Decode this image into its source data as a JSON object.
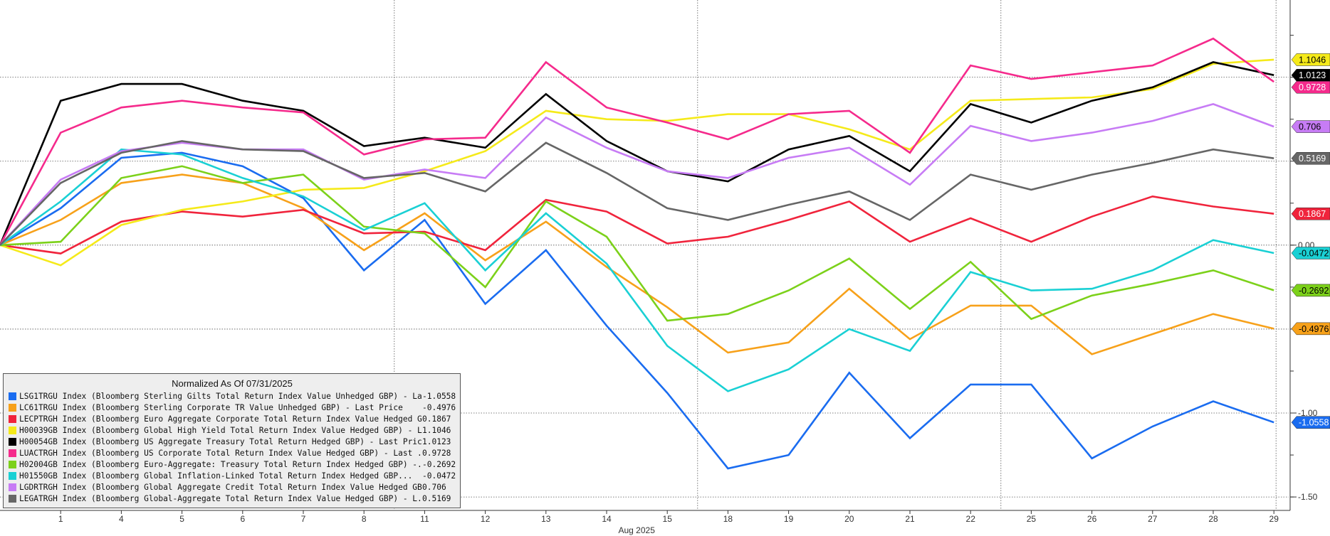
{
  "chart_data": {
    "type": "line",
    "x_axis_period": "Aug 2025",
    "x": [
      "31",
      "1",
      "4",
      "5",
      "6",
      "7",
      "8",
      "11",
      "12",
      "13",
      "14",
      "15",
      "18",
      "19",
      "20",
      "21",
      "22",
      "25",
      "26",
      "27",
      "28",
      "29"
    ],
    "x_tick_labels": [
      "1",
      "4",
      "5",
      "6",
      "7",
      "8",
      "11",
      "12",
      "13",
      "14",
      "15",
      "18",
      "19",
      "20",
      "21",
      "22",
      "25",
      "26",
      "27",
      "28",
      "29"
    ],
    "y_ticks": [
      "-1.50",
      "-1.00",
      "0.00"
    ],
    "ylim": [
      -1.58,
      1.46
    ],
    "y_gridlines": [
      -1.5,
      -1.0,
      -0.5,
      0.0,
      0.5,
      1.0
    ],
    "x_gridlines_after": [
      "8",
      "15",
      "22",
      "29"
    ],
    "grid": true,
    "legend_placement": "bottom-left",
    "legend_title": "Normalized As Of 07/31/2025",
    "series": [
      {
        "name": "LSG1TRGU Index (Bloomberg Sterling Gilts Total Return Index Value Unhedged GBP) - Las...",
        "last": "-1.0558",
        "color": "#1a6cf0",
        "values": [
          0,
          0.22,
          0.52,
          0.55,
          0.47,
          0.28,
          -0.15,
          0.15,
          -0.35,
          -0.03,
          -0.48,
          -0.88,
          -1.33,
          -1.25,
          -0.76,
          -1.15,
          -0.83,
          -0.83,
          -1.27,
          -1.08,
          -0.93,
          -1.0558
        ]
      },
      {
        "name": "LC61TRGU Index (Bloomberg Sterling Corporate TR Value Unhedged GBP) - Last Price",
        "last": "-0.4976",
        "color": "#f7a11a",
        "values": [
          0,
          0.15,
          0.37,
          0.42,
          0.37,
          0.22,
          -0.03,
          0.19,
          -0.09,
          0.14,
          -0.13,
          -0.37,
          -0.64,
          -0.58,
          -0.26,
          -0.56,
          -0.36,
          -0.36,
          -0.65,
          -0.53,
          -0.41,
          -0.4976
        ]
      },
      {
        "name": "LECPTRGH Index (Bloomberg Euro Aggregate Corporate Total Return Index Value Hedged G...",
        "last": "0.1867",
        "color": "#f0243c",
        "values": [
          0,
          -0.05,
          0.14,
          0.2,
          0.17,
          0.21,
          0.07,
          0.08,
          -0.03,
          0.27,
          0.2,
          0.01,
          0.05,
          0.15,
          0.26,
          0.02,
          0.16,
          0.02,
          0.17,
          0.29,
          0.23,
          0.1867
        ]
      },
      {
        "name": "H00039GB Index (Bloomberg Global High Yield Total Return Index Value Hedged GBP) - La...",
        "last": "1.1046",
        "color": "#f5ea1a",
        "values": [
          0,
          -0.12,
          0.12,
          0.21,
          0.26,
          0.33,
          0.34,
          0.44,
          0.56,
          0.8,
          0.75,
          0.74,
          0.78,
          0.78,
          0.69,
          0.57,
          0.86,
          0.87,
          0.88,
          0.93,
          1.08,
          1.1046
        ]
      },
      {
        "name": "H00054GB Index (Bloomberg US Aggregate Treasury Total Return Hedged GBP) - Last Price",
        "last": "1.0123",
        "color": "#000000",
        "values": [
          0,
          0.86,
          0.96,
          0.96,
          0.86,
          0.8,
          0.59,
          0.64,
          0.58,
          0.9,
          0.62,
          0.44,
          0.38,
          0.57,
          0.65,
          0.44,
          0.84,
          0.73,
          0.86,
          0.94,
          1.09,
          1.0123
        ]
      },
      {
        "name": "LUACTRGH Index (Bloomberg US Corporate Total Return Index Value Hedged GBP) - Last ...",
        "last": "0.9728",
        "color": "#f52a8c",
        "values": [
          0,
          0.67,
          0.82,
          0.86,
          0.82,
          0.79,
          0.54,
          0.63,
          0.64,
          1.09,
          0.82,
          0.73,
          0.63,
          0.78,
          0.8,
          0.55,
          1.07,
          0.99,
          1.03,
          1.07,
          1.23,
          0.9728
        ]
      },
      {
        "name": "H02004GB Index (Bloomberg Euro-Aggregate: Treasury Total Return Index Hedged GBP) -...",
        "last": "-0.2692",
        "color": "#7cd11a",
        "values": [
          0,
          0.02,
          0.4,
          0.47,
          0.37,
          0.42,
          0.11,
          0.07,
          -0.25,
          0.26,
          0.05,
          -0.45,
          -0.41,
          -0.27,
          -0.08,
          -0.38,
          -0.1,
          -0.44,
          -0.3,
          -0.23,
          -0.15,
          -0.2692
        ]
      },
      {
        "name": "H01550GB Index (Bloomberg Global Inflation-Linked Total Return Index Hedged GBP...",
        "last": "-0.0472",
        "color": "#1ad0d4",
        "values": [
          0,
          0.26,
          0.57,
          0.54,
          0.4,
          0.29,
          0.09,
          0.25,
          -0.15,
          0.19,
          -0.11,
          -0.6,
          -0.87,
          -0.74,
          -0.5,
          -0.63,
          -0.16,
          -0.27,
          -0.26,
          -0.15,
          0.03,
          -0.0472
        ]
      },
      {
        "name": "LGDRTRGH Index (Bloomberg Global Aggregate Credit Total Return Index Value Hedged GB...",
        "last": "0.706",
        "color": "#c77cf5",
        "values": [
          0,
          0.39,
          0.56,
          0.61,
          0.57,
          0.57,
          0.39,
          0.45,
          0.4,
          0.76,
          0.58,
          0.44,
          0.4,
          0.52,
          0.58,
          0.36,
          0.71,
          0.62,
          0.67,
          0.74,
          0.84,
          0.706
        ]
      },
      {
        "name": "LEGATRGH Index (Bloomberg Global-Aggregate Total Return Index Value Hedged GBP) - L...",
        "last": "0.5169",
        "color": "#666666",
        "values": [
          0,
          0.37,
          0.55,
          0.62,
          0.57,
          0.56,
          0.4,
          0.43,
          0.32,
          0.61,
          0.43,
          0.22,
          0.15,
          0.24,
          0.32,
          0.15,
          0.42,
          0.33,
          0.42,
          0.49,
          0.57,
          0.5169
        ]
      }
    ]
  }
}
